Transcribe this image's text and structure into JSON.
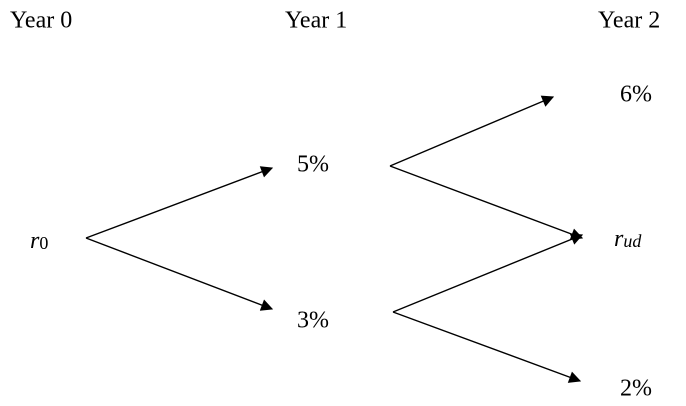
{
  "headers": [
    "Year 0",
    "Year 1",
    "Year 2"
  ],
  "nodes": [
    {
      "base": "r",
      "sub": "0"
    },
    {
      "label": "5%"
    },
    {
      "label": "3%"
    },
    {
      "label": "6%"
    },
    {
      "base": "r",
      "sub": "ud"
    },
    {
      "label": "2%"
    }
  ]
}
